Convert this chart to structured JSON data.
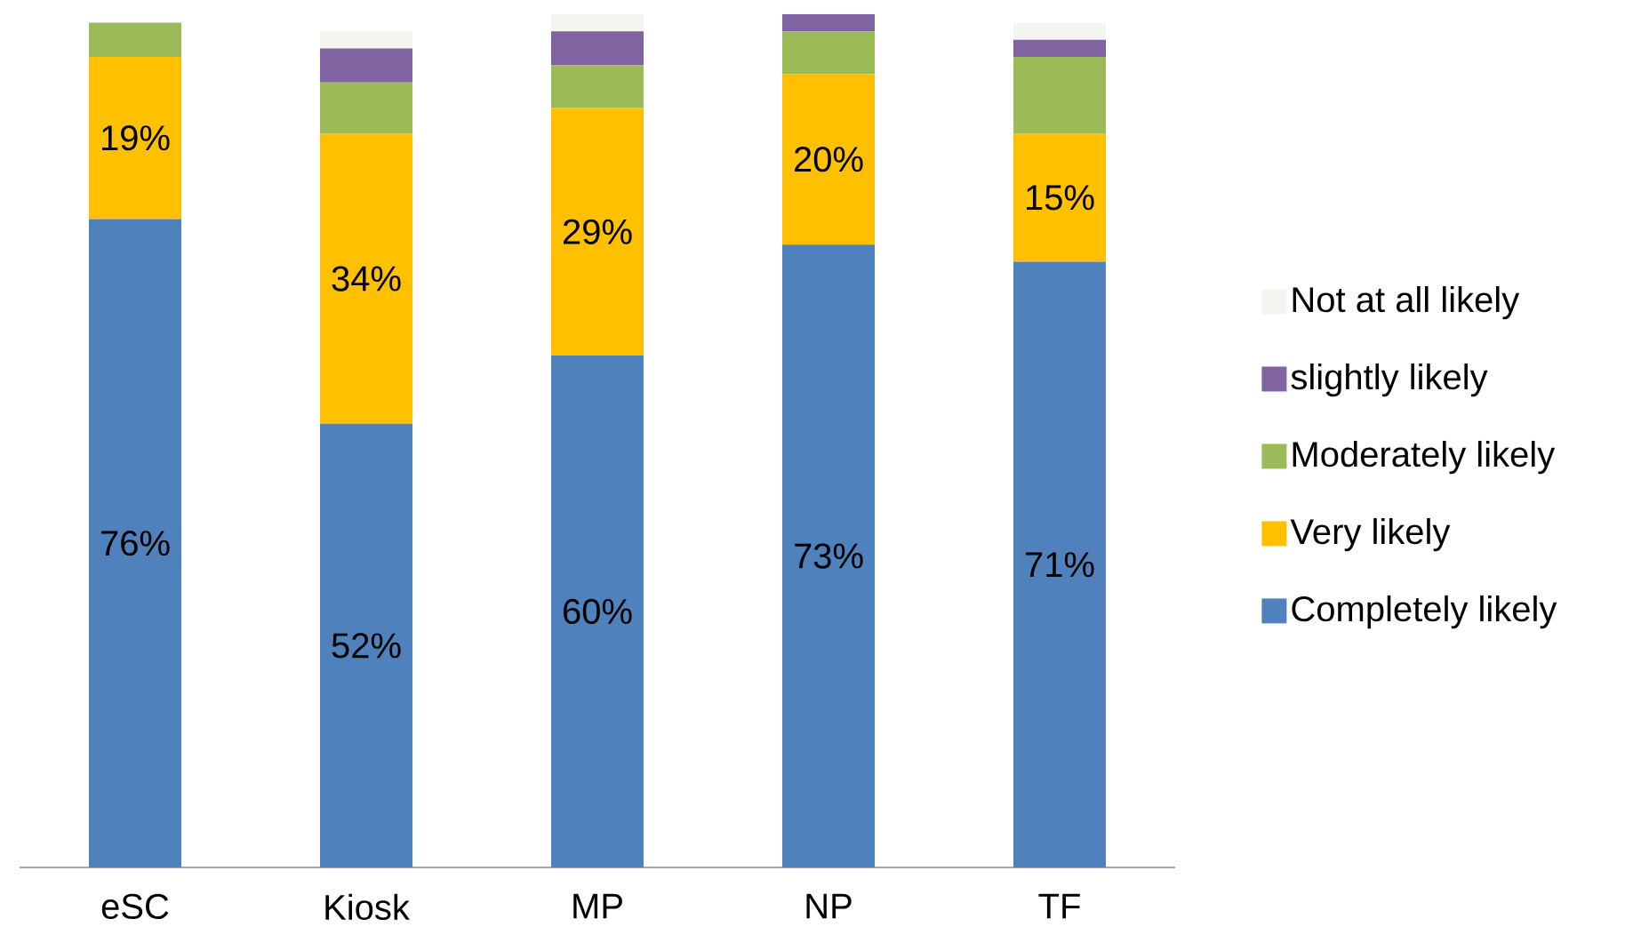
{
  "chart_data": {
    "type": "bar",
    "stacked": true,
    "categories": [
      "eSC",
      "Kiosk",
      "MP",
      "NP",
      "TF"
    ],
    "tick_labels": "x",
    "legend": "right",
    "series": [
      {
        "name": "Completely likely",
        "color": "#4f81bd",
        "values": [
          76,
          52,
          60,
          73,
          71
        ],
        "value_labels": [
          "76%",
          "52%",
          "60%",
          "73%",
          "71%"
        ]
      },
      {
        "name": "Very likely",
        "color": "#ffc000",
        "values": [
          19,
          34,
          29,
          20,
          15
        ],
        "value_labels": [
          "19%",
          "34%",
          "29%",
          "20%",
          "15%"
        ]
      },
      {
        "name": "Moderately likely",
        "color": "#9bbb59",
        "values": [
          4,
          6,
          5,
          5,
          9
        ]
      },
      {
        "name": "slightly likely",
        "color": "#8064a2",
        "values": [
          0,
          4,
          4,
          2,
          2
        ]
      },
      {
        "name": "Not at all likely",
        "color": "#f5f5f0",
        "values": [
          0,
          2,
          2,
          0,
          2
        ]
      }
    ]
  }
}
